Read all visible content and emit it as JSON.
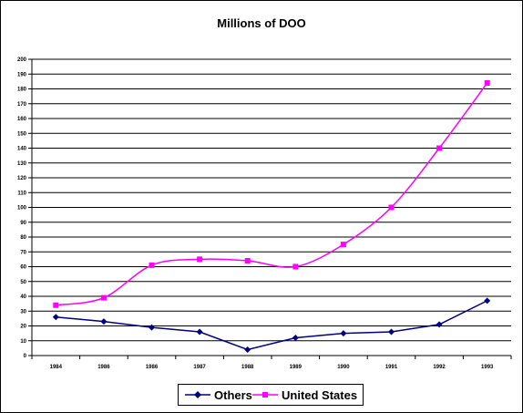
{
  "chart_data": {
    "type": "line",
    "title": "Millions of DOO",
    "xlabel": "",
    "ylabel": "",
    "categories": [
      "1984",
      "1986",
      "1986",
      "1987",
      "1988",
      "1989",
      "1990",
      "1991",
      "1992",
      "1993"
    ],
    "y_ticks": [
      "0",
      "10",
      "20",
      "30",
      "40",
      "50",
      "60",
      "70",
      "80",
      "90",
      "100",
      "110",
      "120",
      "130",
      "140",
      "150",
      "160",
      "170",
      "180",
      "190",
      "200"
    ],
    "ylim": [
      0,
      200
    ],
    "grid": "horizontal",
    "legend_position": "bottom",
    "series": [
      {
        "name": "Others",
        "color": "#000080",
        "marker": "diamond",
        "values": [
          26,
          23,
          19,
          16,
          4,
          12,
          15,
          16,
          21,
          37
        ]
      },
      {
        "name": "United States",
        "color": "#ff00ff",
        "marker": "square",
        "values": [
          34,
          39,
          61,
          65,
          64,
          60,
          75,
          100,
          140,
          184
        ]
      }
    ]
  }
}
